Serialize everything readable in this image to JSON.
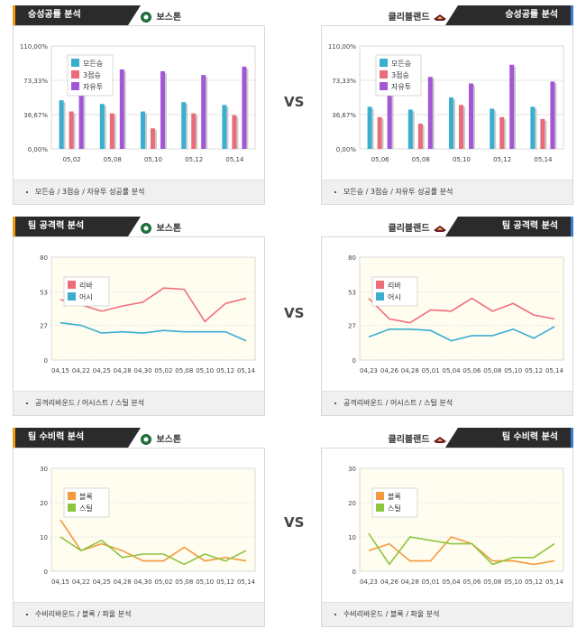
{
  "vs_label": "VS",
  "rows": [
    {
      "kind": "bar",
      "left": {
        "title": "승성공률 분석",
        "team": "보스톤",
        "footer": "모든승 / 3점승 / 자유투 성공률 분석",
        "chart_data": {
          "type": "bar",
          "categories": [
            "05,02",
            "05,08",
            "05,10",
            "05,12",
            "05,14"
          ],
          "ticks": [
            "110,00%",
            "73,33%",
            "36,67%",
            "0,00%"
          ],
          "tick_values": [
            110,
            73.33,
            36.67,
            0
          ],
          "ylim": [
            0,
            110
          ],
          "series": [
            {
              "name": "모든승",
              "color": "#3aaecf",
              "values": [
                52,
                48,
                40,
                50,
                47
              ]
            },
            {
              "name": "3점승",
              "color": "#ea6b79",
              "values": [
                40,
                38,
                22,
                38,
                36
              ]
            },
            {
              "name": "자유투",
              "color": "#a356d6",
              "values": [
                75,
                85,
                83,
                79,
                88
              ]
            }
          ]
        }
      },
      "right": {
        "title": "승성공률 분석",
        "team": "클리블랜드",
        "footer": "모든승 / 3점승 / 자유투 성공률 분석",
        "chart_data": {
          "type": "bar",
          "categories": [
            "05,06",
            "05,08",
            "05,10",
            "05,12",
            "05,14"
          ],
          "ticks": [
            "110,00%",
            "73,33%",
            "36,67%",
            "0,00%"
          ],
          "tick_values": [
            110,
            73.33,
            36.67,
            0
          ],
          "ylim": [
            0,
            110
          ],
          "series": [
            {
              "name": "모든승",
              "color": "#3aaecf",
              "values": [
                45,
                42,
                55,
                43,
                45
              ]
            },
            {
              "name": "3점승",
              "color": "#ea6b79",
              "values": [
                34,
                27,
                47,
                34,
                32
              ]
            },
            {
              "name": "자유투",
              "color": "#a356d6",
              "values": [
                87,
                77,
                70,
                90,
                72
              ]
            }
          ]
        }
      }
    },
    {
      "kind": "line",
      "left": {
        "title": "팀 공격력 분석",
        "team": "보스톤",
        "footer": "공격리바운드 / 어시스트 / 스틸 분석",
        "chart_data": {
          "type": "line",
          "x": [
            "04,15",
            "04,22",
            "04,25",
            "04,28",
            "04,30",
            "05,02",
            "05,08",
            "05,10",
            "05,12",
            "05,14"
          ],
          "ticks": [
            "80",
            "53",
            "27",
            "0"
          ],
          "tick_values": [
            80,
            53,
            27,
            0
          ],
          "ylim": [
            0,
            80
          ],
          "series": [
            {
              "name": "리바",
              "color": "#ee6e78",
              "values": [
                47,
                43,
                38,
                42,
                45,
                56,
                55,
                30,
                44,
                48
              ]
            },
            {
              "name": "어시",
              "color": "#3aaecf",
              "values": [
                29,
                27,
                21,
                22,
                21,
                23,
                22,
                22,
                22,
                15
              ]
            }
          ]
        }
      },
      "right": {
        "title": "팀 공격력 분석",
        "team": "클리블랜드",
        "footer": "공격리바운드 / 어시스트 / 스틸 분석",
        "chart_data": {
          "type": "line",
          "x": [
            "04,23",
            "04,26",
            "04,28",
            "05,01",
            "05,04",
            "05,06",
            "05,08",
            "05,10",
            "05,12",
            "05,14"
          ],
          "ticks": [
            "80",
            "53",
            "27",
            "0"
          ],
          "tick_values": [
            80,
            53,
            27,
            0
          ],
          "ylim": [
            0,
            80
          ],
          "series": [
            {
              "name": "리바",
              "color": "#ee6e78",
              "values": [
                48,
                32,
                29,
                39,
                38,
                48,
                38,
                44,
                35,
                32
              ]
            },
            {
              "name": "어시",
              "color": "#3aaecf",
              "values": [
                18,
                24,
                24,
                23,
                15,
                19,
                19,
                24,
                17,
                26
              ]
            }
          ]
        }
      }
    },
    {
      "kind": "line",
      "left": {
        "title": "팀 수비력 분석",
        "team": "보스톤",
        "footer": "수비리바운드 / 블록 / 파울 분석",
        "chart_data": {
          "type": "line",
          "x": [
            "04,15",
            "04,22",
            "04,25",
            "04,28",
            "04,30",
            "05,02",
            "05,08",
            "05,10",
            "05,12",
            "05,14"
          ],
          "ticks": [
            "30",
            "20",
            "10",
            "0"
          ],
          "tick_values": [
            30,
            20,
            10,
            0
          ],
          "ylim": [
            0,
            30
          ],
          "series": [
            {
              "name": "블록",
              "color": "#f39a3c",
              "values": [
                15,
                6,
                8,
                6,
                3,
                3,
                7,
                3,
                4,
                3
              ]
            },
            {
              "name": "스틸",
              "color": "#8cc63f",
              "values": [
                10,
                6,
                9,
                4,
                5,
                5,
                2,
                5,
                3,
                6
              ]
            }
          ]
        }
      },
      "right": {
        "title": "팀 수비력 분석",
        "team": "클리블랜드",
        "footer": "수비리바운드 / 블록 / 파울 분석",
        "chart_data": {
          "type": "line",
          "x": [
            "04,23",
            "04,26",
            "04,28",
            "05,01",
            "05,04",
            "05,06",
            "05,08",
            "05,10",
            "05,12",
            "05,14"
          ],
          "ticks": [
            "30",
            "20",
            "10",
            "0"
          ],
          "tick_values": [
            30,
            20,
            10,
            0
          ],
          "ylim": [
            0,
            30
          ],
          "series": [
            {
              "name": "블록",
              "color": "#f39a3c",
              "values": [
                6,
                8,
                3,
                3,
                10,
                8,
                3,
                3,
                2,
                3
              ]
            },
            {
              "name": "스틸",
              "color": "#8cc63f",
              "values": [
                11,
                2,
                10,
                9,
                8,
                8,
                2,
                4,
                4,
                8
              ]
            }
          ]
        }
      }
    }
  ]
}
